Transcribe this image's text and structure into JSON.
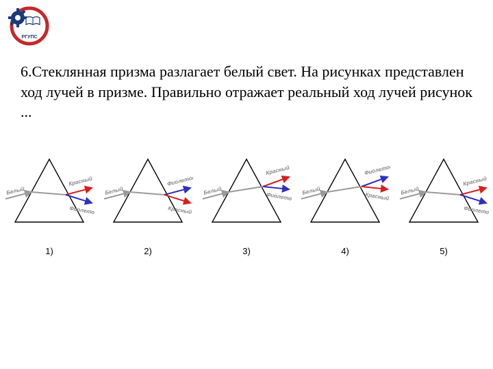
{
  "logo": {
    "outer_ring_color": "#c62828",
    "inner_fill": "#ffffff",
    "gear_color": "#1a3a7a",
    "book_color": "#e8e8e8",
    "text": "РГУПС",
    "text_color": "#1a3a7a"
  },
  "question": {
    "text": "6.Стеклянная призма разлагает белый свет. На рисунках представлен ход лучей в призме. Правильно отражает реальный ход лучей рисунок ..."
  },
  "colors": {
    "prism_stroke": "#000000",
    "white_ray": "#9a9a9a",
    "red_ray": "#d62020",
    "violet_ray": "#3030c0",
    "label_fill": "#707070"
  },
  "ray_labels": {
    "white": "Белый",
    "red": "Красный",
    "violet": "Фиолетовый"
  },
  "diagrams": [
    {
      "id": 1,
      "label": "1)",
      "top_color": "red",
      "top_label": "red",
      "bottom_color": "violet",
      "bottom_label": "violet",
      "bend": "down"
    },
    {
      "id": 2,
      "label": "2)",
      "top_color": "violet",
      "top_label": "violet",
      "bottom_color": "red",
      "bottom_label": "red",
      "bend": "down"
    },
    {
      "id": 3,
      "label": "3)",
      "top_color": "red",
      "top_label": "red",
      "bottom_color": "violet",
      "bottom_label": "violet",
      "bend": "up"
    },
    {
      "id": 4,
      "label": "4)",
      "top_color": "violet",
      "top_label": "violet",
      "bottom_color": "red",
      "bottom_label": "red",
      "bend": "up"
    },
    {
      "id": 5,
      "label": "5)",
      "top_color": "red",
      "top_label": "red",
      "bottom_color": "violet",
      "bottom_label": "violet",
      "bend": "down"
    }
  ]
}
